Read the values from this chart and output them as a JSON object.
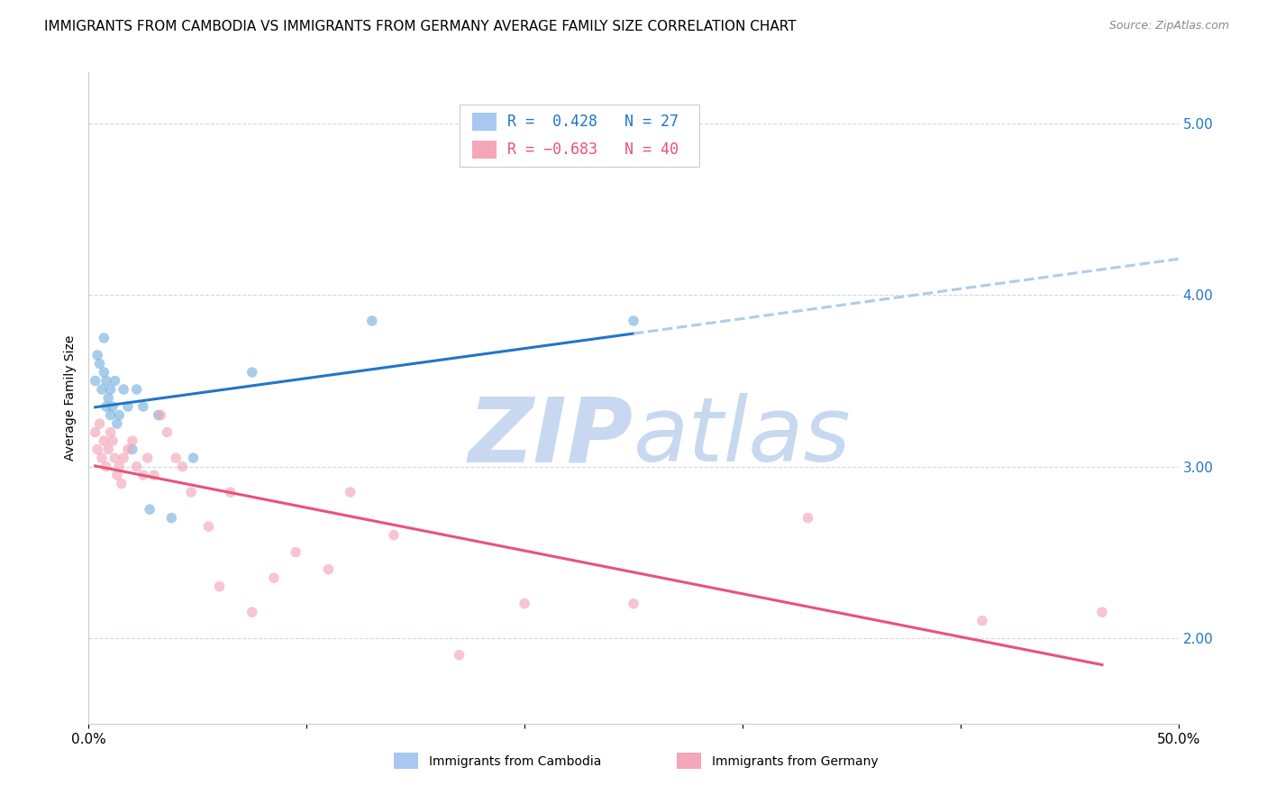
{
  "title": "IMMIGRANTS FROM CAMBODIA VS IMMIGRANTS FROM GERMANY AVERAGE FAMILY SIZE CORRELATION CHART",
  "source_text": "Source: ZipAtlas.com",
  "ylabel": "Average Family Size",
  "xlim": [
    0.0,
    0.5
  ],
  "ylim": [
    1.5,
    5.3
  ],
  "yticks": [
    2.0,
    3.0,
    4.0,
    5.0
  ],
  "xticks": [
    0.0,
    0.1,
    0.2,
    0.3,
    0.4,
    0.5
  ],
  "xtick_labels": [
    "0.0%",
    "",
    "",
    "",
    "",
    "50.0%"
  ],
  "ytick_labels": [
    "2.00",
    "3.00",
    "4.00",
    "5.00"
  ],
  "r_cambodia": 0.428,
  "n_cambodia": 27,
  "r_germany": -0.683,
  "n_germany": 40,
  "cambodia_color": "#7ab3e0",
  "germany_color": "#f4a7b9",
  "trendline_cambodia_color": "#2176c7",
  "trendline_germany_color": "#e8537a",
  "trendline_ext_color": "#b0cce8",
  "background_color": "#ffffff",
  "grid_color": "#d0d8e8",
  "watermark_zip": "ZIP",
  "watermark_atlas": "atlas",
  "watermark_color": "#c8d8f0",
  "legend_box_color_cambodia": "#a8c8f0",
  "legend_box_color_germany": "#f4a7b9",
  "cambodia_x": [
    0.003,
    0.004,
    0.005,
    0.006,
    0.007,
    0.007,
    0.008,
    0.008,
    0.009,
    0.01,
    0.01,
    0.011,
    0.012,
    0.013,
    0.014,
    0.016,
    0.018,
    0.02,
    0.022,
    0.025,
    0.028,
    0.032,
    0.038,
    0.048,
    0.075,
    0.13,
    0.25
  ],
  "cambodia_y": [
    3.5,
    3.65,
    3.6,
    3.45,
    3.55,
    3.75,
    3.35,
    3.5,
    3.4,
    3.3,
    3.45,
    3.35,
    3.5,
    3.25,
    3.3,
    3.45,
    3.35,
    3.1,
    3.45,
    3.35,
    2.75,
    3.3,
    2.7,
    3.05,
    3.55,
    3.85,
    3.85
  ],
  "germany_x": [
    0.003,
    0.004,
    0.005,
    0.006,
    0.007,
    0.008,
    0.009,
    0.01,
    0.011,
    0.012,
    0.013,
    0.014,
    0.015,
    0.016,
    0.018,
    0.02,
    0.022,
    0.025,
    0.027,
    0.03,
    0.033,
    0.036,
    0.04,
    0.043,
    0.047,
    0.055,
    0.06,
    0.065,
    0.075,
    0.085,
    0.095,
    0.11,
    0.12,
    0.14,
    0.17,
    0.2,
    0.25,
    0.33,
    0.41,
    0.465
  ],
  "germany_y": [
    3.2,
    3.1,
    3.25,
    3.05,
    3.15,
    3.0,
    3.1,
    3.2,
    3.15,
    3.05,
    2.95,
    3.0,
    2.9,
    3.05,
    3.1,
    3.15,
    3.0,
    2.95,
    3.05,
    2.95,
    3.3,
    3.2,
    3.05,
    3.0,
    2.85,
    2.65,
    2.3,
    2.85,
    2.15,
    2.35,
    2.5,
    2.4,
    2.85,
    2.6,
    1.9,
    2.2,
    2.2,
    2.7,
    2.1,
    2.15
  ],
  "title_fontsize": 11,
  "source_fontsize": 9,
  "legend_fontsize": 12,
  "ylabel_fontsize": 10,
  "ytick_fontsize": 11,
  "xtick_fontsize": 11,
  "marker_size": 70,
  "marker_alpha": 0.65,
  "trendline_lw": 2.2
}
